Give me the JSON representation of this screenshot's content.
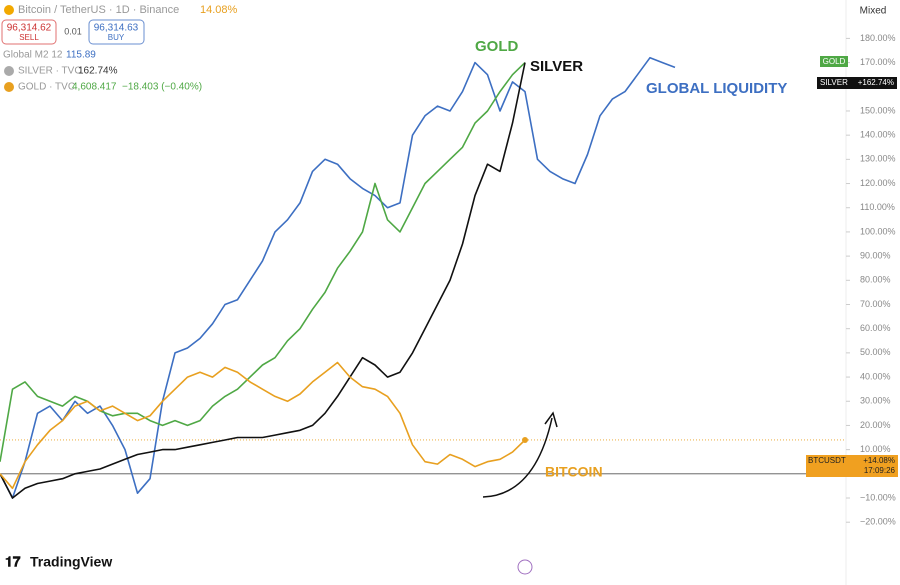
{
  "header": {
    "symbol": "Bitcoin / TetherUS · 1D · Binance",
    "change": "14.08%",
    "sell_price": "96,314.62",
    "sell": "SELL",
    "spread": "0.01",
    "buy_price": "96,314.63",
    "buy": "BUY",
    "scale_mode": "Mixed",
    "brand": "TradingView"
  },
  "legend": {
    "m2_value": "115.89",
    "silver_value": "162.74%",
    "gold_price": "4,608.417",
    "gold_change": "−18.403 (−0.40%)"
  },
  "badges": {
    "gold": "GOLD",
    "silver": "SILVER",
    "silver_pct": "+162.74%",
    "btc": "BTCUSDT",
    "btc_pct": "+14.08%",
    "btc_time": "17:09:26"
  },
  "chart_data": {
    "type": "line",
    "annotations": [
      "GOLD",
      "SILVER",
      "GLOBAL LIQUIDITY",
      "BITCOIN"
    ],
    "categories": [
      null,
      null,
      null,
      null,
      null,
      null,
      null,
      null,
      null,
      null,
      null,
      null,
      null,
      null,
      null,
      null,
      null,
      null,
      null,
      null,
      null,
      null,
      null,
      null,
      null,
      null,
      null,
      null,
      null,
      null,
      null,
      null,
      null,
      null,
      null,
      null,
      null,
      null,
      null,
      null,
      null,
      null,
      null,
      null,
      null,
      null,
      null,
      null,
      null,
      null,
      null,
      null,
      null,
      null,
      null
    ],
    "series": [
      {
        "name": "Global M2 12",
        "color": "#3d6fc2",
        "values": [
          0,
          -10,
          5,
          25,
          28,
          22,
          30,
          25,
          28,
          20,
          10,
          -8,
          -2,
          30,
          50,
          52,
          56,
          62,
          70,
          72,
          80,
          88,
          100,
          105,
          112,
          125,
          130,
          128,
          122,
          118,
          115,
          110,
          112,
          140,
          148,
          152,
          150,
          158,
          170,
          165,
          150,
          162,
          158,
          130,
          125,
          122,
          120,
          132,
          148,
          155,
          158,
          165,
          172,
          170,
          168
        ]
      },
      {
        "name": "GOLD · TVC",
        "color": "#4fa845",
        "values": [
          5,
          35,
          38,
          32,
          30,
          28,
          32,
          30,
          26,
          24,
          25,
          25,
          22,
          20,
          22,
          20,
          22,
          28,
          32,
          35,
          40,
          45,
          48,
          55,
          60,
          68,
          75,
          85,
          92,
          100,
          120,
          105,
          100,
          110,
          120,
          125,
          130,
          135,
          145,
          150,
          158,
          165,
          170,
          null,
          null,
          null,
          null,
          null,
          null,
          null,
          null,
          null,
          null,
          null,
          null
        ]
      },
      {
        "name": "SILVER · TVC",
        "color": "#111111",
        "values": [
          0,
          -10,
          -6,
          -4,
          -3,
          -2,
          0,
          1,
          2,
          4,
          6,
          8,
          9,
          10,
          10,
          11,
          12,
          13,
          14,
          15,
          15,
          15,
          16,
          17,
          18,
          20,
          25,
          32,
          40,
          48,
          45,
          40,
          42,
          50,
          60,
          70,
          80,
          95,
          115,
          128,
          125,
          145,
          170,
          null,
          null,
          null,
          null,
          null,
          null,
          null,
          null,
          null,
          null,
          null,
          null
        ]
      },
      {
        "name": "Bitcoin / TetherUS · 1D · Binance",
        "color": "#e8a020",
        "values": [
          0,
          -6,
          5,
          12,
          18,
          22,
          28,
          30,
          26,
          28,
          25,
          22,
          24,
          30,
          35,
          40,
          42,
          40,
          44,
          42,
          38,
          35,
          32,
          30,
          33,
          38,
          42,
          46,
          40,
          36,
          35,
          32,
          25,
          12,
          5,
          4,
          8,
          6,
          3,
          5,
          6,
          9,
          14,
          null,
          null,
          null,
          null,
          null,
          null,
          null,
          null,
          null,
          null,
          null,
          null
        ]
      }
    ],
    "ylim": [
      -25,
      185
    ],
    "yticks": [
      {
        "value": -20,
        "label": "−20.00%"
      },
      {
        "value": -10,
        "label": "−10.00%"
      },
      {
        "value": 0,
        "label": "0.00%"
      },
      {
        "value": 10,
        "label": "10.00%"
      },
      {
        "value": 20,
        "label": "20.00%"
      },
      {
        "value": 30,
        "label": "30.00%"
      },
      {
        "value": 40,
        "label": "40.00%"
      },
      {
        "value": 50,
        "label": "50.00%"
      },
      {
        "value": 60,
        "label": "60.00%"
      },
      {
        "value": 70,
        "label": "70.00%"
      },
      {
        "value": 80,
        "label": "80.00%"
      },
      {
        "value": 90,
        "label": "90.00%"
      },
      {
        "value": 100,
        "label": "100.00%"
      },
      {
        "value": 110,
        "label": "110.00%"
      },
      {
        "value": 120,
        "label": "120.00%"
      },
      {
        "value": 130,
        "label": "130.00%"
      },
      {
        "value": 140,
        "label": "140.00%"
      },
      {
        "value": 150,
        "label": "150.00%"
      },
      {
        "value": 160,
        "label": "160.00%"
      },
      {
        "value": 170,
        "label": "170.00%"
      },
      {
        "value": 180,
        "label": "180.00%"
      }
    ],
    "grid": false
  }
}
